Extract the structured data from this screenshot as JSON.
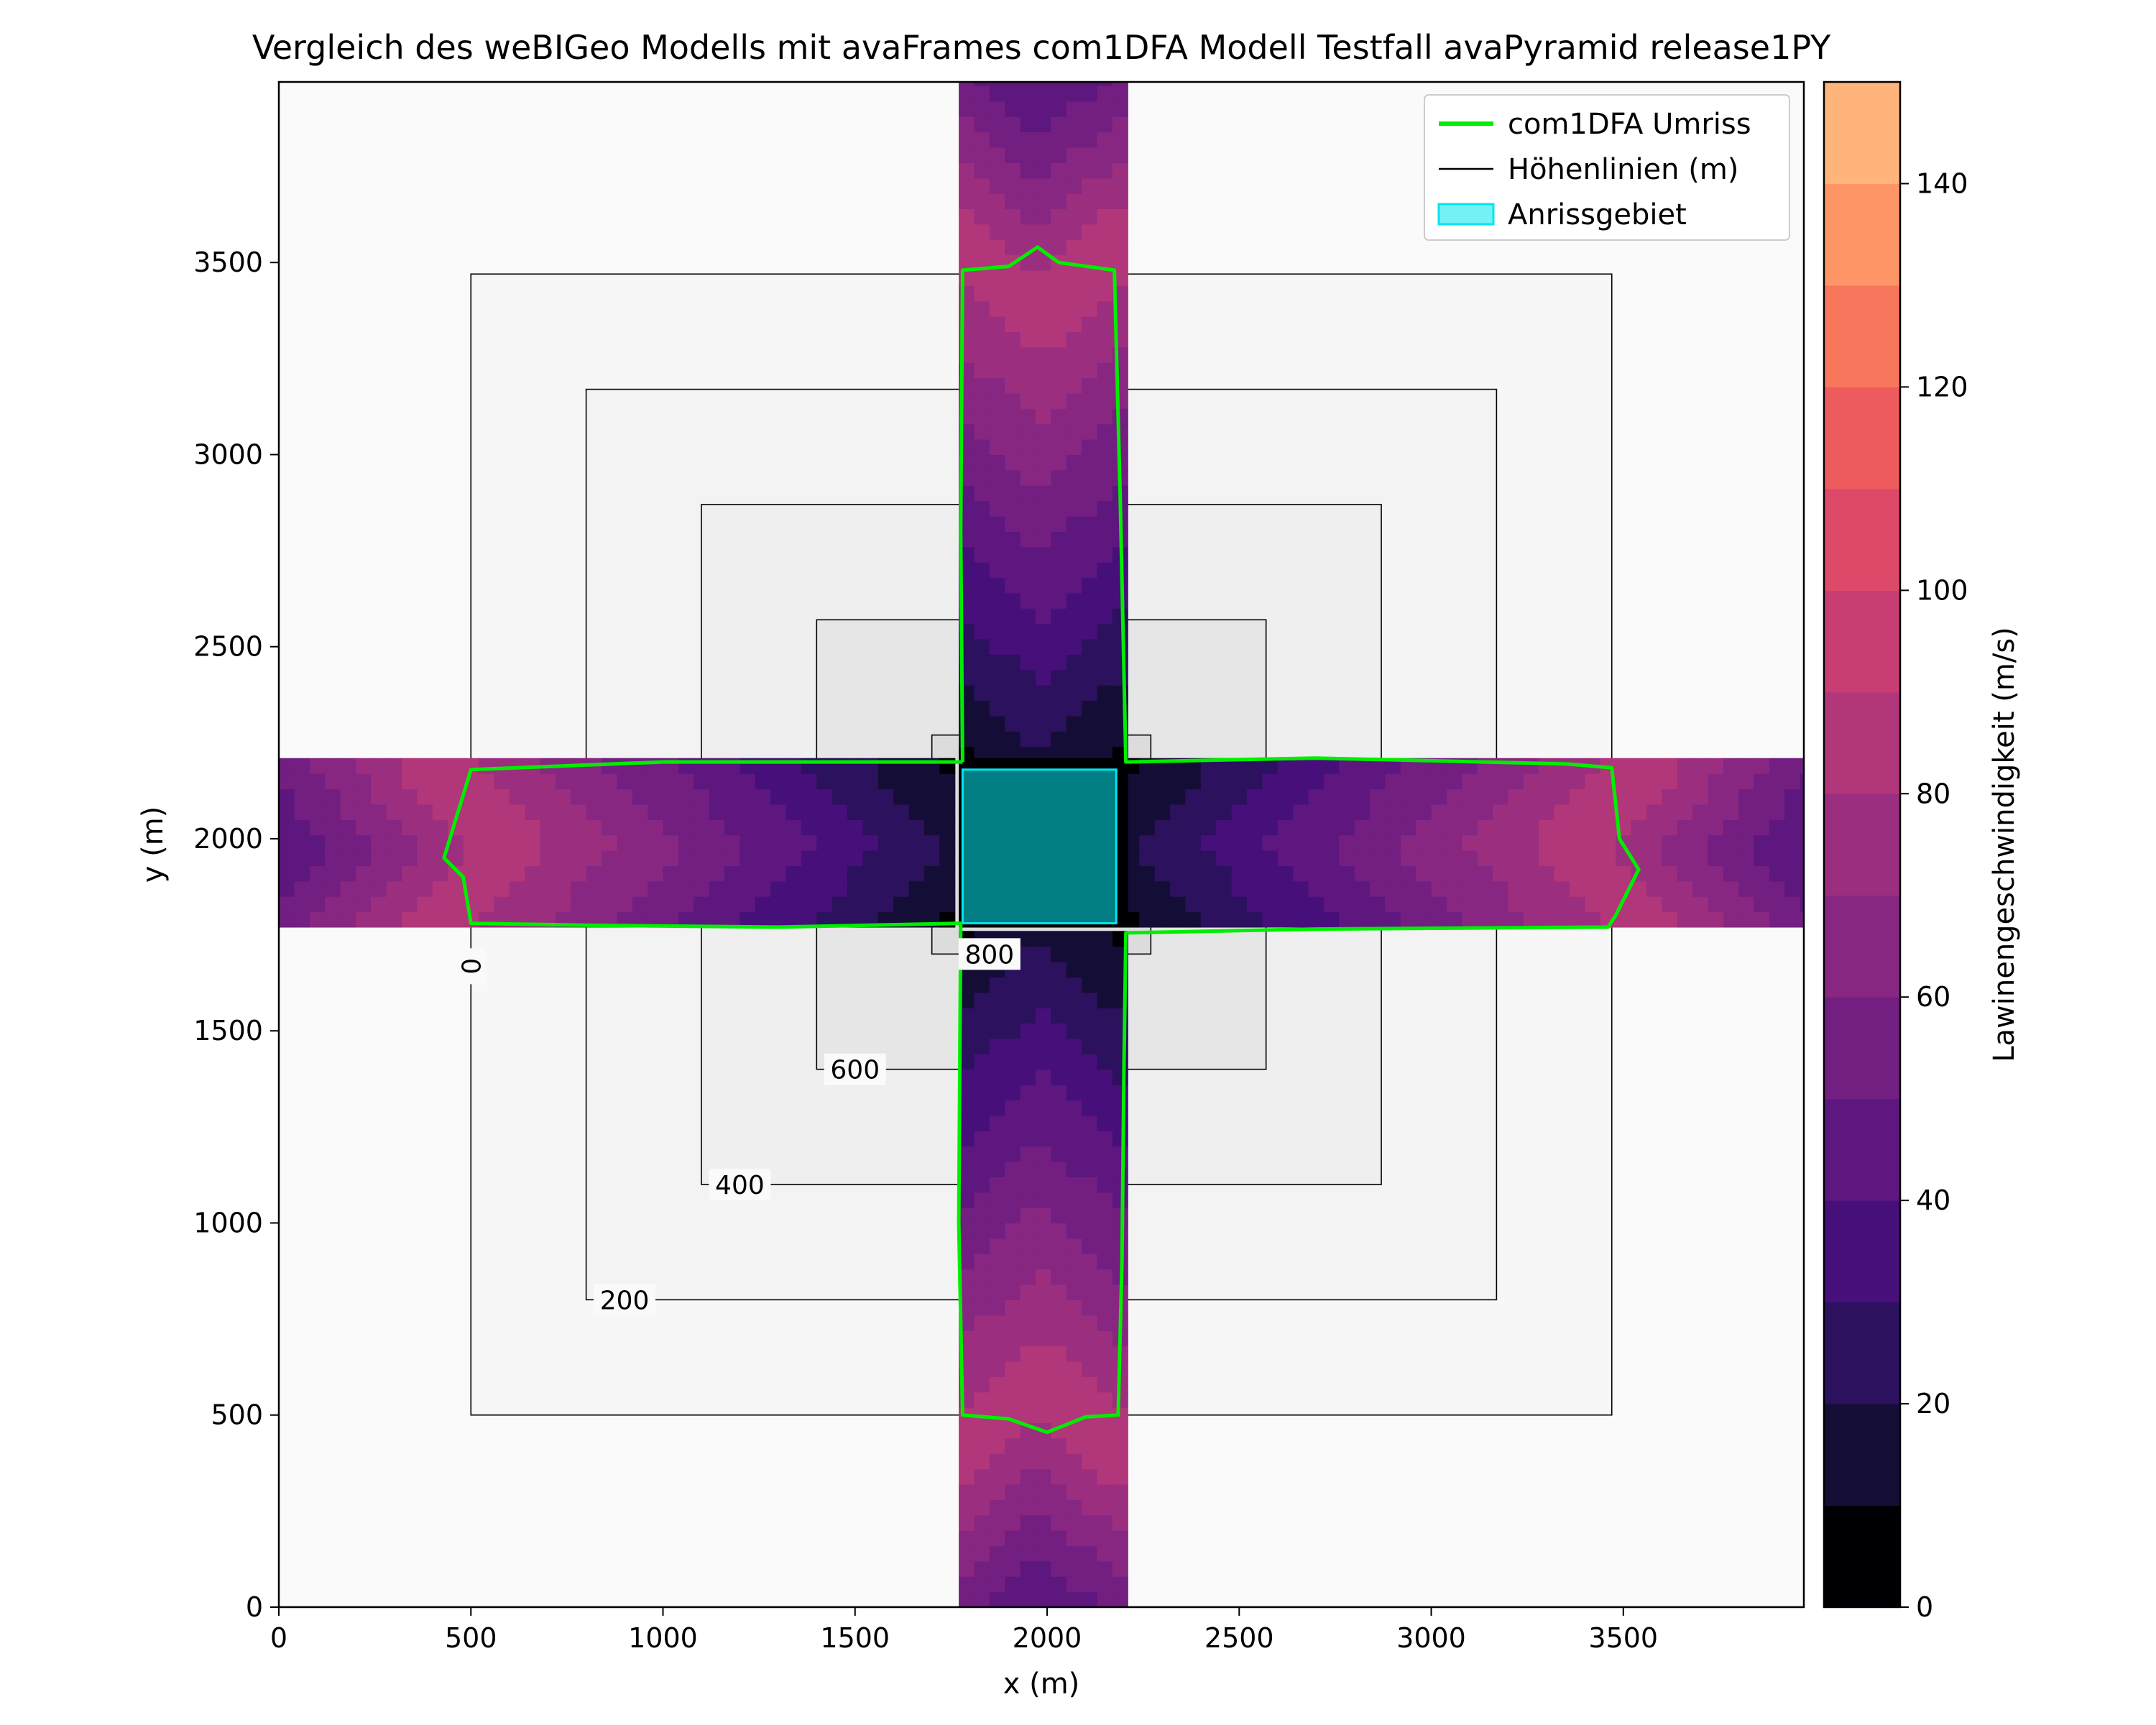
{
  "chart_data": {
    "type": "heatmap",
    "title": "Vergleich des weBIGeo Modells mit avaFrames com1DFA Modell Testfall avaPyramid release1PY",
    "xlabel": "x (m)",
    "ylabel": "y (m)",
    "xlim": [
      0,
      3970
    ],
    "ylim": [
      0,
      3970
    ],
    "xticks": [
      0,
      500,
      1000,
      1500,
      2000,
      2500,
      3000,
      3500
    ],
    "yticks": [
      0,
      500,
      1000,
      1500,
      2000,
      2500,
      3000,
      3500
    ],
    "colorbar": {
      "label": "Lawinengeschwindigkeit (m/s)",
      "min": 0,
      "max": 150,
      "ticks": [
        0,
        20,
        40,
        60,
        80,
        100,
        120,
        140
      ],
      "levels": [
        0,
        10,
        20,
        30,
        40,
        50,
        60,
        70,
        80,
        90,
        100,
        110,
        120,
        130,
        140,
        150
      ],
      "colors": [
        "#000004",
        "#140e36",
        "#2b115e",
        "#470f7a",
        "#5d177f",
        "#721f81",
        "#872781",
        "#9c2e7f",
        "#b2367a",
        "#c83e73",
        "#dd4a69",
        "#ee5b5e",
        "#f8765c",
        "#fd9567",
        "#feb47b",
        "#fed395",
        "#fcefb1"
      ]
    },
    "contours": {
      "levels": [
        0,
        200,
        400,
        600,
        800
      ],
      "labels": [
        "0",
        "200",
        "400",
        "600",
        "800"
      ],
      "squares": [
        [
          500,
          3470
        ],
        [
          800,
          3170
        ],
        [
          1100,
          2870
        ],
        [
          1400,
          2570
        ],
        [
          1700,
          2270
        ]
      ]
    },
    "release_area": {
      "x": [
        1780,
        2180
      ],
      "y": [
        1780,
        2180
      ]
    },
    "flow_arms": {
      "half_width_m": 210,
      "vertical_y_range": [
        0,
        3970
      ],
      "horizontal_x_range": [
        0,
        3970
      ],
      "peak_speed_ms": 82,
      "peak_distance_m": 1400
    },
    "outline": [
      [
        1780,
        2200
      ],
      [
        1775,
        2800
      ],
      [
        1780,
        3480
      ],
      [
        1900,
        3490
      ],
      [
        1975,
        3540
      ],
      [
        2030,
        3500
      ],
      [
        2175,
        3480
      ],
      [
        2190,
        2900
      ],
      [
        2205,
        2200
      ],
      [
        2700,
        2210
      ],
      [
        3350,
        2195
      ],
      [
        3470,
        2185
      ],
      [
        3490,
        2000
      ],
      [
        3540,
        1920
      ],
      [
        3480,
        1800
      ],
      [
        3460,
        1770
      ],
      [
        2700,
        1765
      ],
      [
        2205,
        1755
      ],
      [
        2200,
        1400
      ],
      [
        2195,
        900
      ],
      [
        2185,
        500
      ],
      [
        2100,
        495
      ],
      [
        2000,
        455
      ],
      [
        1900,
        490
      ],
      [
        1780,
        500
      ],
      [
        1770,
        1000
      ],
      [
        1775,
        1780
      ],
      [
        1300,
        1770
      ],
      [
        800,
        1775
      ],
      [
        500,
        1780
      ],
      [
        480,
        1900
      ],
      [
        430,
        1950
      ],
      [
        500,
        2180
      ],
      [
        1000,
        2200
      ],
      [
        1780,
        2200
      ]
    ],
    "legend": {
      "position": "upper right",
      "entries": [
        {
          "label": "com1DFA Umriss",
          "color": "#00ee00",
          "kind": "line"
        },
        {
          "label": "Höhenlinien (m)",
          "color": "#000000",
          "kind": "line"
        },
        {
          "label": "Anrissgebiet",
          "color": "#00e5ee",
          "kind": "patch"
        }
      ]
    }
  }
}
